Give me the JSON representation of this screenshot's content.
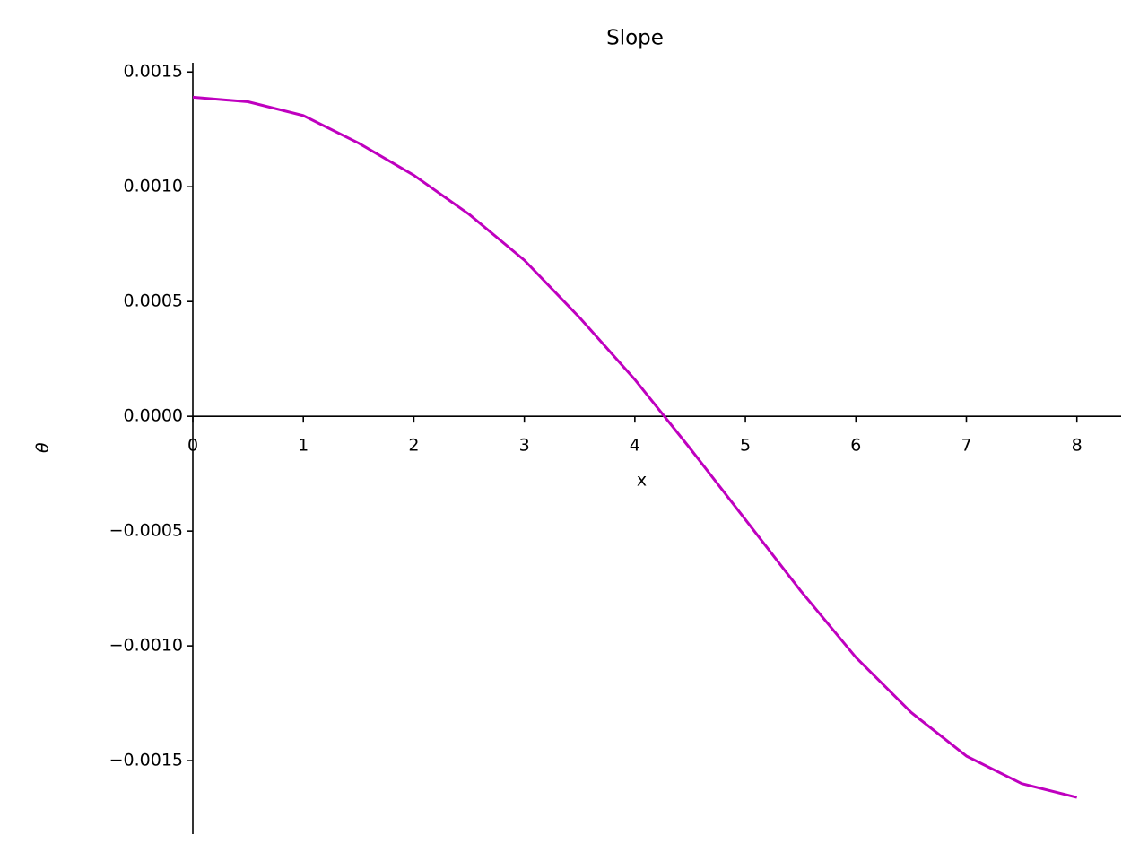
{
  "chart_data": {
    "type": "line",
    "title": "Slope",
    "x_label": "x",
    "y_label": "θ",
    "x": [
      0,
      0.5,
      1,
      1.5,
      2,
      2.5,
      3,
      3.5,
      4,
      4.5,
      5,
      5.5,
      6,
      6.5,
      7,
      7.5,
      8
    ],
    "values": [
      0.00139,
      0.00137,
      0.00131,
      0.00119,
      0.00105,
      0.00088,
      0.00068,
      0.00043,
      0.00016,
      -0.00014,
      -0.00045,
      -0.00076,
      -0.00105,
      -0.00129,
      -0.00148,
      -0.0016,
      -0.00166
    ],
    "color": "#bf00bf",
    "xlim": [
      0,
      8.4
    ],
    "ylim": [
      -0.00182,
      0.00154
    ],
    "xticks": [
      0,
      1,
      2,
      3,
      4,
      5,
      6,
      7,
      8
    ],
    "yticks": [
      {
        "value": -0.0015,
        "label": "−0.0015"
      },
      {
        "value": -0.001,
        "label": "−0.0010"
      },
      {
        "value": -0.0005,
        "label": "−0.0005"
      },
      {
        "value": 0,
        "label": "0.0000"
      },
      {
        "value": 0.0005,
        "label": "0.0005"
      },
      {
        "value": 0.001,
        "label": "0.0010"
      },
      {
        "value": 0.0015,
        "label": "0.0015"
      }
    ],
    "grid": false
  }
}
